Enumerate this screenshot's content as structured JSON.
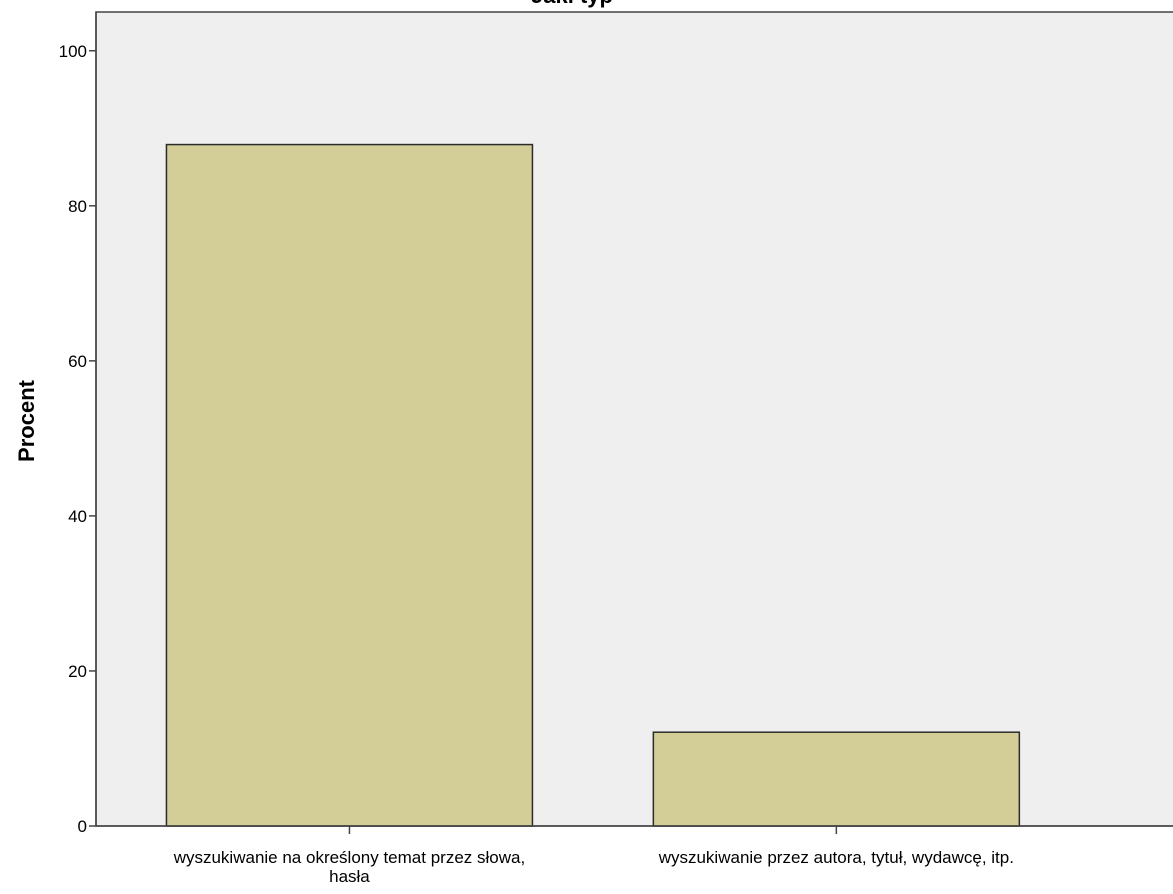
{
  "chart_data": {
    "type": "bar",
    "title": "Jaki typ",
    "ylabel": "Procent",
    "xlabel": "",
    "categories": [
      [
        "wyszukiwanie na określony temat przez słowa,",
        "hasła"
      ],
      [
        "wyszukiwanie przez autora, tytuł, wydawcę, itp."
      ]
    ],
    "values": [
      87.9,
      12.1
    ],
    "ylim": [
      0,
      105
    ],
    "yticks": [
      0,
      20,
      40,
      60,
      80,
      100
    ],
    "grid": false,
    "colors": {
      "plot_background": "#efefef",
      "bar_fill": "#d3ce97",
      "bar_stroke": "#2b2b2b",
      "axis": "#444444",
      "text": "#000000"
    }
  }
}
